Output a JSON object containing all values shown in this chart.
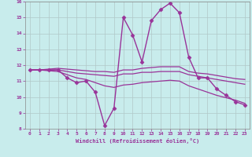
{
  "xlabel": "Windchill (Refroidissement éolien,°C)",
  "ylabel": "",
  "xlim": [
    -0.5,
    23.5
  ],
  "ylim": [
    8,
    16
  ],
  "yticks": [
    8,
    9,
    10,
    11,
    12,
    13,
    14,
    15,
    16
  ],
  "xticks": [
    0,
    1,
    2,
    3,
    4,
    5,
    6,
    7,
    8,
    9,
    10,
    11,
    12,
    13,
    14,
    15,
    16,
    17,
    18,
    19,
    20,
    21,
    22,
    23
  ],
  "bg_color": "#c8ecec",
  "grid_color": "#b0c8c8",
  "line_color": "#993399",
  "lines": [
    {
      "x": [
        0,
        1,
        2,
        3,
        4,
        5,
        6,
        7,
        8,
        9,
        10,
        11,
        12,
        13,
        14,
        15,
        16,
        17,
        18,
        19,
        20,
        21,
        22,
        23
      ],
      "y": [
        11.7,
        11.7,
        11.7,
        11.7,
        11.2,
        10.9,
        11.0,
        10.3,
        8.2,
        9.3,
        15.0,
        13.9,
        12.2,
        14.8,
        15.5,
        15.9,
        15.3,
        12.5,
        11.2,
        11.2,
        10.5,
        10.1,
        9.7,
        9.5
      ],
      "marker": "D",
      "markersize": 2.5,
      "linewidth": 1.0,
      "has_marker": true
    },
    {
      "x": [
        0,
        1,
        2,
        3,
        4,
        5,
        6,
        7,
        8,
        9,
        10,
        11,
        12,
        13,
        14,
        15,
        16,
        17,
        18,
        19,
        20,
        21,
        22,
        23
      ],
      "y": [
        11.7,
        11.7,
        11.75,
        11.8,
        11.75,
        11.7,
        11.65,
        11.6,
        11.6,
        11.55,
        11.7,
        11.7,
        11.8,
        11.85,
        11.9,
        11.9,
        11.9,
        11.6,
        11.5,
        11.45,
        11.35,
        11.25,
        11.15,
        11.1
      ],
      "marker": null,
      "markersize": 0,
      "linewidth": 0.9,
      "has_marker": false
    },
    {
      "x": [
        0,
        1,
        2,
        3,
        4,
        5,
        6,
        7,
        8,
        9,
        10,
        11,
        12,
        13,
        14,
        15,
        16,
        17,
        18,
        19,
        20,
        21,
        22,
        23
      ],
      "y": [
        11.7,
        11.7,
        11.7,
        11.7,
        11.6,
        11.5,
        11.45,
        11.4,
        11.35,
        11.3,
        11.45,
        11.45,
        11.55,
        11.55,
        11.6,
        11.6,
        11.6,
        11.4,
        11.3,
        11.2,
        11.1,
        11.0,
        10.9,
        10.8
      ],
      "marker": null,
      "markersize": 0,
      "linewidth": 0.9,
      "has_marker": false
    },
    {
      "x": [
        0,
        1,
        2,
        3,
        4,
        5,
        6,
        7,
        8,
        9,
        10,
        11,
        12,
        13,
        14,
        15,
        16,
        17,
        18,
        19,
        20,
        21,
        22,
        23
      ],
      "y": [
        11.7,
        11.7,
        11.65,
        11.6,
        11.4,
        11.2,
        11.1,
        10.9,
        10.7,
        10.6,
        10.75,
        10.8,
        10.9,
        10.95,
        11.0,
        11.05,
        11.0,
        10.7,
        10.5,
        10.3,
        10.1,
        9.95,
        9.8,
        9.6
      ],
      "marker": null,
      "markersize": 0,
      "linewidth": 0.9,
      "has_marker": false
    }
  ]
}
